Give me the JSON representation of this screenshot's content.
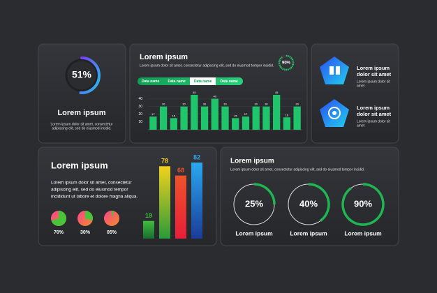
{
  "panel1": {
    "gauge": {
      "value": 51,
      "label": "51%"
    },
    "title": "Lorem ipsum",
    "text": [
      "Lorem ipsum dolor sit amet, consectetur",
      "adipiscing elit, sed do eiusmod incidid."
    ]
  },
  "panel2": {
    "title": "Lorem ipsum",
    "subtitle": "Lorem ipsum dolor sit amet, consectetur adipiscing elit, sed do eiusmod tempor incidid.",
    "gauge": {
      "value": 90,
      "label": "90%"
    },
    "tabs": [
      "Data name",
      "Data name",
      "Data name",
      "Data name"
    ],
    "chart": {
      "type": "bar",
      "values": [
        17,
        30,
        15,
        30,
        45,
        30,
        40,
        30,
        15,
        17,
        30,
        30,
        45,
        16,
        30
      ],
      "ylim": [
        0,
        45
      ],
      "yticks": [
        10,
        20,
        30,
        40
      ],
      "color": "#1fc56a",
      "grid": true
    }
  },
  "panel3": {
    "items": [
      {
        "title": [
          "Lorem ipsum",
          "dolor sit amet"
        ],
        "text": [
          "Lorem ipsum dolor sit",
          "amet"
        ]
      },
      {
        "title": [
          "Lorem ipsum",
          "dolor sit amet"
        ],
        "text": [
          "Lorem ipsum dolor sit",
          "amet"
        ]
      }
    ]
  },
  "panel4": {
    "title": "Lorem ipsum",
    "text": [
      "Lorem ipsum dolor sit amet, consectetur",
      "adipiscing elit, sed do eiusmod tempor",
      "incididunt ut labore et dolore magna aliqua."
    ],
    "pies": {
      "values": [
        70,
        30,
        5
      ],
      "value_labels": [
        "70%",
        "30%",
        "05%"
      ]
    },
    "chart": {
      "type": "bar",
      "values": [
        19,
        78,
        68,
        82
      ],
      "colors": [
        "#3fbf3a",
        "#f2d21b",
        "#f0522a",
        "#2aa8f0"
      ],
      "ylim": [
        0,
        82
      ]
    }
  },
  "panel5": {
    "title": "Lorem ipsum",
    "subtitle": "Lorem ipsum dolor sit amet, consectetur adipiscing elit, sed do eiusmod tempor incidid.",
    "gauges": {
      "values": [
        25,
        40,
        90
      ],
      "value_labels": [
        "25%",
        "40%",
        "90%"
      ],
      "labels": [
        "Lorem ipsum",
        "Lorem ipsum",
        "Lorem ipsum"
      ]
    }
  }
}
